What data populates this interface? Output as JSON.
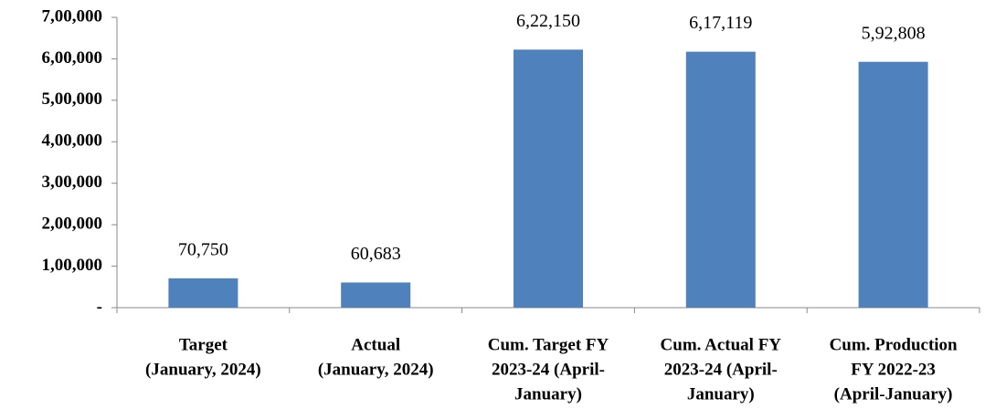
{
  "chart_data": {
    "type": "bar",
    "categories": [
      [
        "Target",
        "(January, 2024)"
      ],
      [
        "Actual",
        "(January, 2024)"
      ],
      [
        "Cum. Target FY",
        "2023-24 (April-",
        "January)"
      ],
      [
        "Cum. Actual FY",
        "2023-24 (April-",
        "January)"
      ],
      [
        "Cum. Production",
        "FY 2022-23",
        "(April-January)"
      ]
    ],
    "values": [
      70750,
      60683,
      622150,
      617119,
      592808
    ],
    "value_labels": [
      "70,750",
      "60,683",
      "6,22,150",
      "6,17,119",
      "5,92,808"
    ],
    "color": "#4f81bd",
    "ylim": [
      0,
      700000
    ],
    "yticks": [
      {
        "value": 0,
        "label": "-"
      },
      {
        "value": 100000,
        "label": "1,00,000"
      },
      {
        "value": 200000,
        "label": "2,00,000"
      },
      {
        "value": 300000,
        "label": "3,00,000"
      },
      {
        "value": 400000,
        "label": "4,00,000"
      },
      {
        "value": 500000,
        "label": "5,00,000"
      },
      {
        "value": 600000,
        "label": "6,00,000"
      },
      {
        "value": 700000,
        "label": "7,00,000"
      }
    ],
    "grid": false
  }
}
